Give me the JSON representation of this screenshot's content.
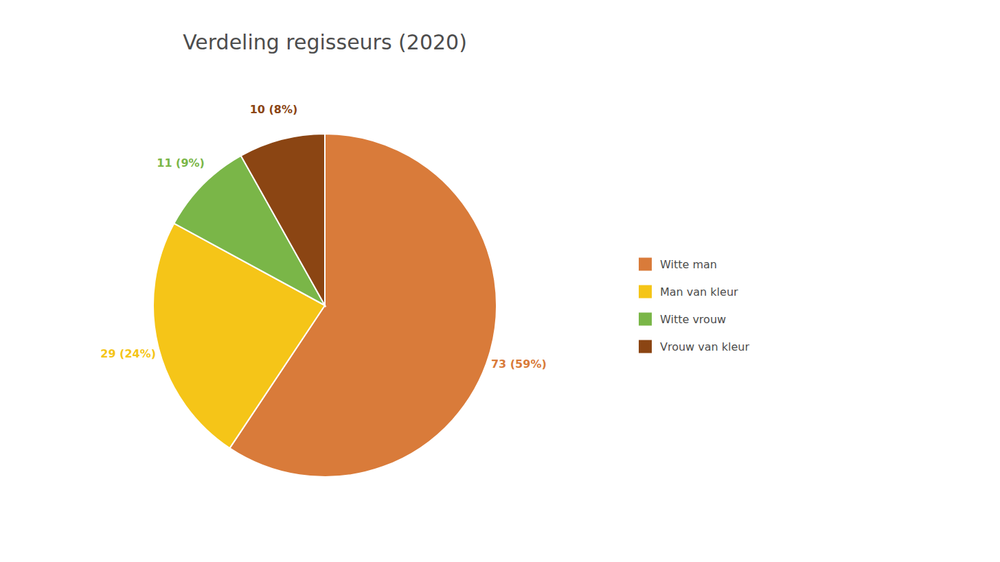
{
  "chart_data": {
    "type": "pie",
    "title": "Verdeling regisseurs (2020)",
    "categories": [
      "Witte man",
      "Man van kleur",
      "Witte vrouw",
      "Vrouw van kleur"
    ],
    "values": [
      73,
      29,
      11,
      10
    ],
    "value_labels": [
      "73 (59%)",
      "29 (24%)",
      "11 (9%)",
      "10 (8%)"
    ],
    "colors": [
      "#d97b3a",
      "#f5c518",
      "#7ab648",
      "#8b4513"
    ],
    "data_labels": true,
    "legend": "right"
  }
}
